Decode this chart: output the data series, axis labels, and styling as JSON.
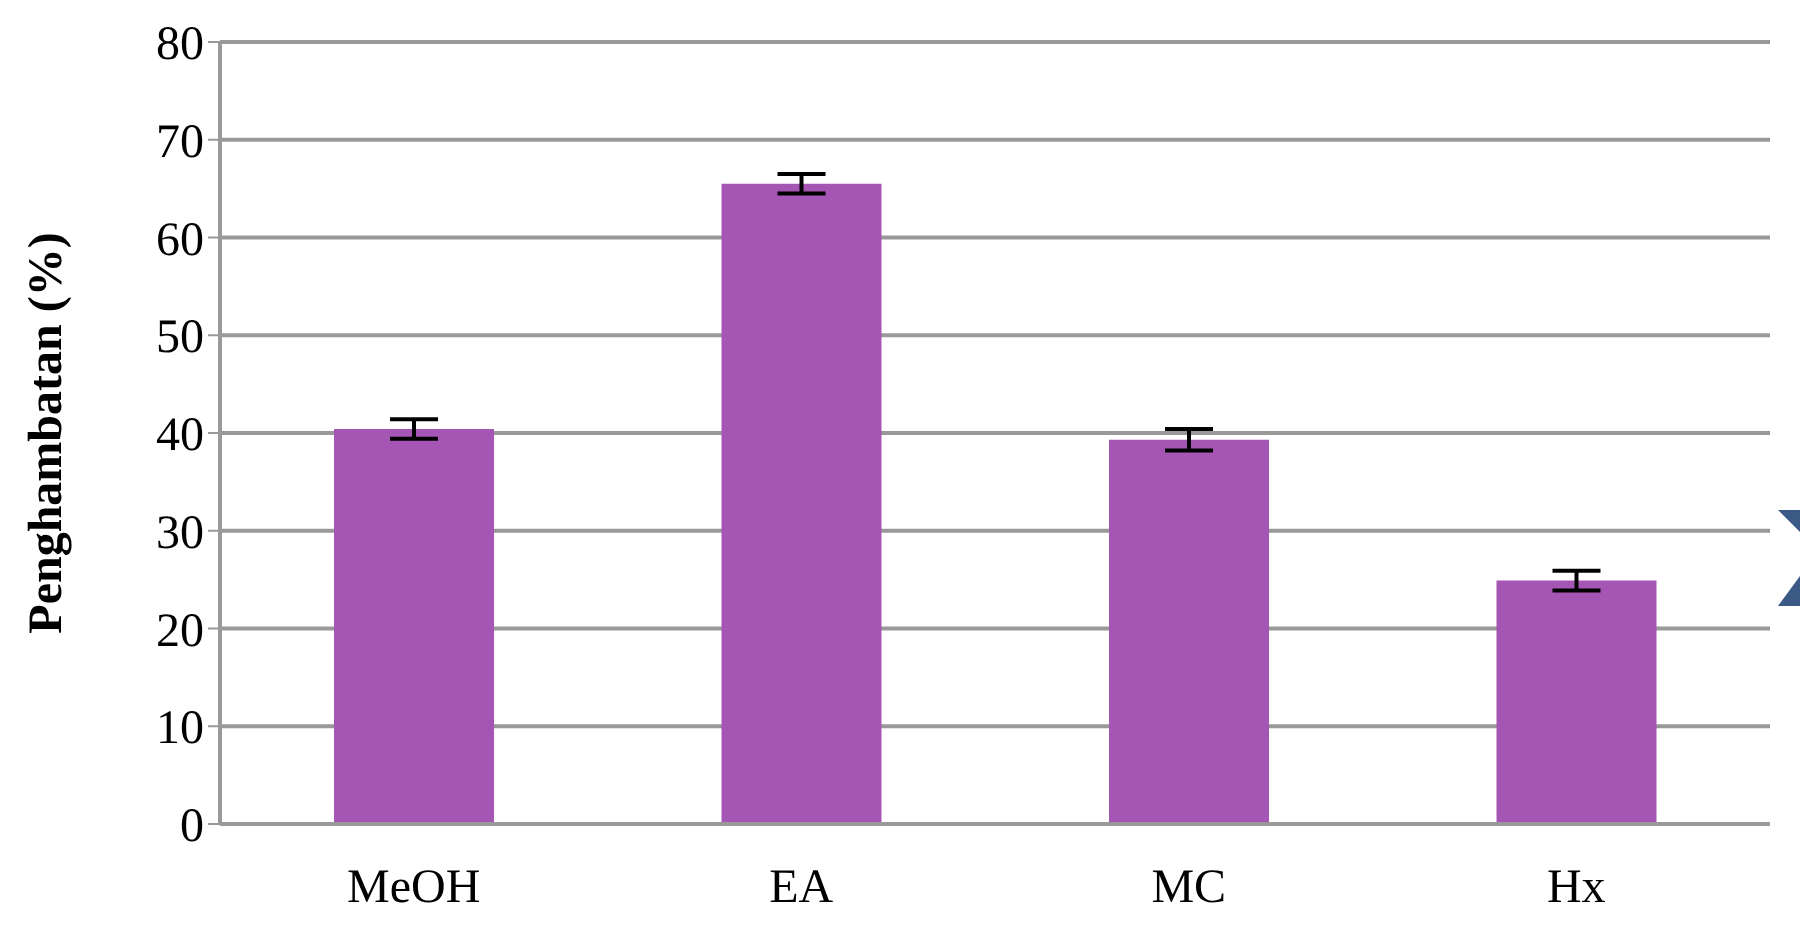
{
  "chart_data": {
    "type": "bar",
    "ylabel": "Penghambatan (%)",
    "categories": [
      "MeOH",
      "EA",
      "MC",
      "Hx"
    ],
    "values": [
      40.4,
      65.5,
      39.3,
      24.9
    ],
    "errors": [
      1.0,
      1.0,
      1.1,
      1.0
    ],
    "color": "#a555b3",
    "ylim": [
      0,
      80
    ],
    "yticks": [
      0,
      10,
      20,
      30,
      40,
      50,
      60,
      70,
      80
    ],
    "grid": "y"
  }
}
